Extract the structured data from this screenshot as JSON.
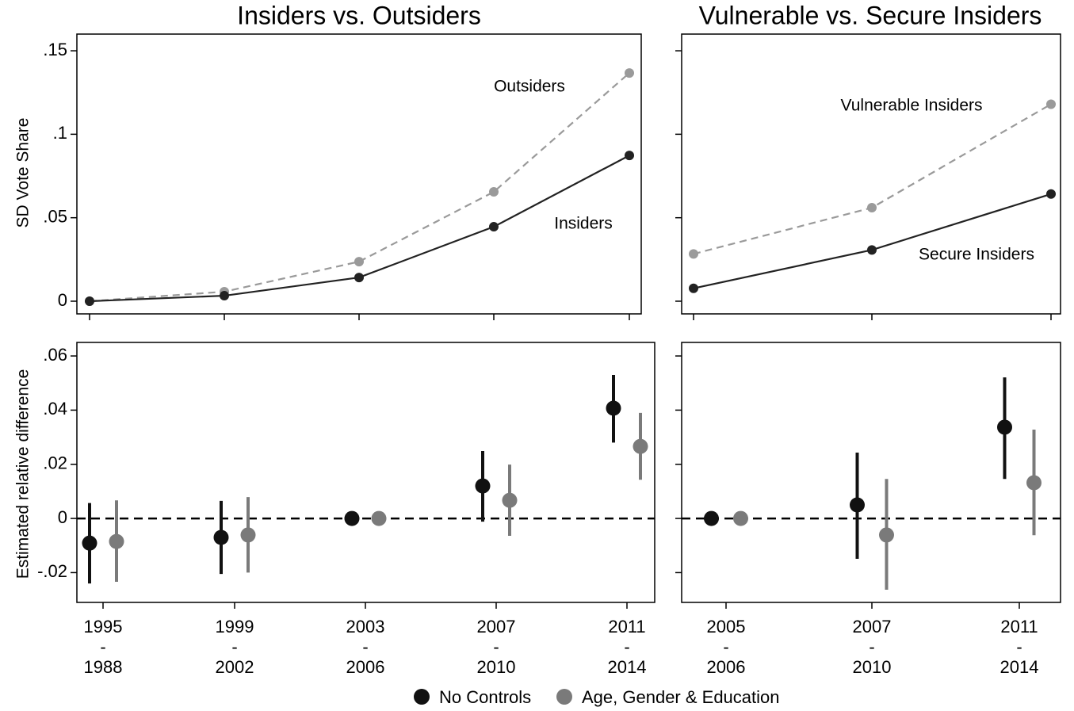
{
  "chart_data": [
    {
      "type": "line",
      "title": "Insiders vs. Outsiders",
      "y_label": "SD Vote Share",
      "categories": [
        null,
        null,
        null,
        null,
        null
      ],
      "ylim": [
        -0.0076,
        0.16
      ],
      "yticks": [
        {
          "value": 0,
          "label": "0"
        },
        {
          "value": 0.05,
          "label": ".05"
        },
        {
          "value": 0.1,
          "label": ".1"
        },
        {
          "value": 0.15,
          "label": ".15"
        }
      ],
      "ytick_labels": true,
      "series": [
        {
          "name": "Outsiders",
          "color": "#9a9a9a",
          "linestyle": "dashed",
          "values": [
            0,
            0.0057,
            0.0237,
            0.0655,
            0.1367
          ]
        },
        {
          "name": "Insiders",
          "color": "#222222",
          "linestyle": "solid",
          "values": [
            0,
            0.0033,
            0.0142,
            0.0446,
            0.0873
          ]
        }
      ]
    },
    {
      "type": "line",
      "title": "Vulnerable vs. Secure Insiders",
      "categories": [
        null,
        null,
        null
      ],
      "ylim": [
        -0.0076,
        0.16
      ],
      "yticks": [
        0,
        0.05,
        0.1,
        0.15
      ],
      "ytick_labels": false,
      "series": [
        {
          "name": "Vulnerable Insiders",
          "color": "#9a9a9a",
          "linestyle": "dashed",
          "values": [
            0.0283,
            0.056,
            0.118
          ]
        },
        {
          "name": "Secure Insiders",
          "color": "#222222",
          "linestyle": "solid",
          "values": [
            0.0077,
            0.0307,
            0.0642
          ]
        }
      ]
    },
    {
      "type": "dot-errorbar",
      "y_label": "Estimated relative difference",
      "categories": [
        "1995 - 1988",
        "1999 - 2002",
        "2003 - 2006",
        "2007 - 2010",
        "2011 - 2014"
      ],
      "ylim": [
        -0.031,
        0.065
      ],
      "yticks": [
        {
          "value": -0.02,
          "label": "-.02"
        },
        {
          "value": 0,
          "label": "0"
        },
        {
          "value": 0.02,
          "label": ".02"
        },
        {
          "value": 0.04,
          "label": ".04"
        },
        {
          "value": 0.06,
          "label": ".06"
        }
      ],
      "ytick_labels": true,
      "reference_line": 0,
      "series": [
        {
          "name": "No Controls",
          "color": "#111111",
          "values": [
            -0.0091,
            -0.007,
            0,
            0.012,
            0.0407
          ],
          "lower": [
            -0.024,
            -0.0205,
            null,
            -0.0012,
            0.028
          ],
          "upper": [
            0.0057,
            0.0065,
            null,
            0.0249,
            0.053
          ]
        },
        {
          "name": "Age, Gender & Education",
          "color": "#7a7a7a",
          "values": [
            -0.0085,
            -0.0061,
            0,
            0.0067,
            0.0266
          ],
          "lower": [
            -0.0234,
            -0.02,
            null,
            -0.0064,
            0.0143
          ],
          "upper": [
            0.0067,
            0.0079,
            null,
            0.0199,
            0.039
          ]
        }
      ]
    },
    {
      "type": "dot-errorbar",
      "categories": [
        "2005 - 2006",
        "2007 - 2010",
        "2011 - 2014"
      ],
      "ylim": [
        -0.031,
        0.065
      ],
      "yticks": [
        -0.02,
        0,
        0.02,
        0.04,
        0.06
      ],
      "ytick_labels": false,
      "reference_line": 0,
      "series": [
        {
          "color": "#111111",
          "values": [
            0,
            0.005,
            0.0337
          ],
          "lower": [
            null,
            -0.0149,
            0.0146
          ],
          "upper": [
            null,
            0.0243,
            0.0521
          ]
        },
        {
          "color": "#7a7a7a",
          "values": [
            0,
            -0.0061,
            0.0132
          ],
          "lower": [
            null,
            -0.0263,
            -0.0062
          ],
          "upper": [
            null,
            0.0146,
            0.0328
          ]
        }
      ]
    }
  ]
}
